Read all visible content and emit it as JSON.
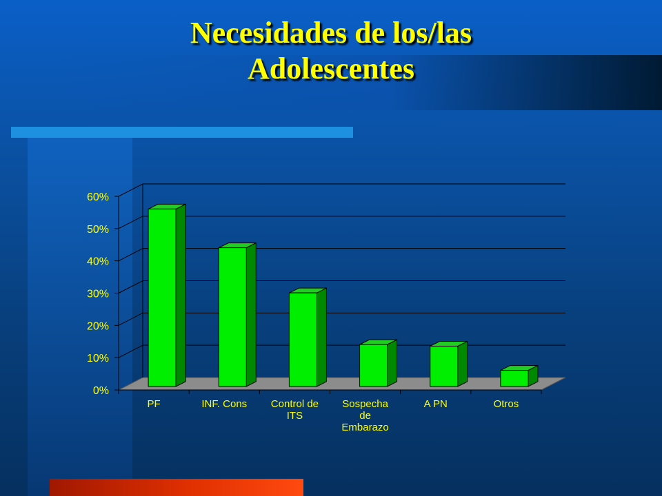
{
  "title": {
    "line1": "Necesidades de los/las",
    "line2": "Adolescentes"
  },
  "colors": {
    "title": "#ffff00",
    "bar_front": "#00ee00",
    "bar_side": "#008800",
    "bar_top": "#22cc22",
    "floor": "#8c8c8c",
    "labels": "#ffff00"
  },
  "chart_data": {
    "type": "bar",
    "title": "",
    "xlabel": "",
    "ylabel": "",
    "ylim": [
      0,
      60
    ],
    "grid": true,
    "legend": "none",
    "y_ticks": [
      "0%",
      "10%",
      "20%",
      "30%",
      "40%",
      "50%",
      "60%"
    ],
    "categories": [
      [
        "PF"
      ],
      [
        "INF. Cons"
      ],
      [
        "Control de",
        "ITS"
      ],
      [
        "Sospecha",
        "de",
        "Embarazo"
      ],
      [
        "A PN"
      ],
      [
        "Otros"
      ]
    ],
    "values": [
      55,
      43,
      29,
      13,
      12.5,
      5
    ]
  }
}
